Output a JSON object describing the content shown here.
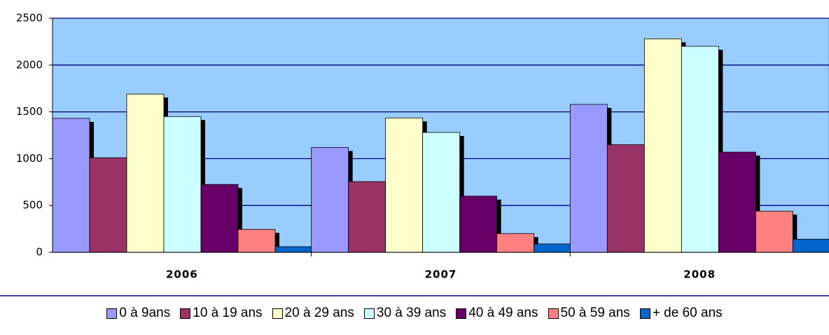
{
  "chart_data": {
    "type": "bar",
    "categories": [
      "2006",
      "2007",
      "2008"
    ],
    "series": [
      {
        "name": "0 à 9ans",
        "color": "#9999ff",
        "values": [
          1430,
          1120,
          1580
        ]
      },
      {
        "name": "10 à 19 ans",
        "color": "#993366",
        "values": [
          1010,
          755,
          1150
        ]
      },
      {
        "name": "20 à 29 ans",
        "color": "#ffffcc",
        "values": [
          1690,
          1435,
          2280
        ]
      },
      {
        "name": "30 à 39 ans",
        "color": "#ccffff",
        "values": [
          1450,
          1280,
          2200
        ]
      },
      {
        "name": "40 à 49 ans",
        "color": "#660066",
        "values": [
          725,
          600,
          1070
        ]
      },
      {
        "name": "50 à 59 ans",
        "color": "#ff8080",
        "values": [
          245,
          200,
          440
        ]
      },
      {
        "name": "+ de 60 ans",
        "color": "#0066cc",
        "values": [
          60,
          90,
          140
        ]
      }
    ],
    "ylim": [
      0,
      2500
    ],
    "yticks": [
      0,
      500,
      1000,
      1500,
      2000,
      2500
    ],
    "grid": true,
    "background": "#99ccff",
    "legend": "bottom"
  }
}
